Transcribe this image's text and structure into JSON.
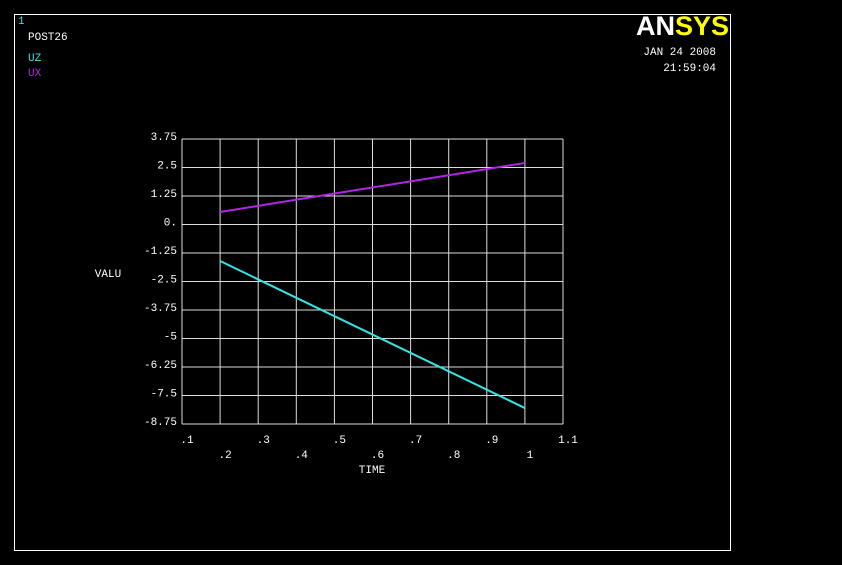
{
  "header": {
    "window_number": "1",
    "logo_parts": [
      "AN",
      "SYS"
    ],
    "date": "JAN 24 2008",
    "time": "21:59:04"
  },
  "chart_data": {
    "type": "line",
    "title": "POST26",
    "xlabel": "TIME",
    "ylabel": "VALU",
    "x": [
      0.2,
      1.0
    ],
    "series": [
      {
        "name": "UZ",
        "color": "#33e6e6",
        "values": [
          -1.6,
          -8.05
        ]
      },
      {
        "name": "UX",
        "color": "#b026e6",
        "values": [
          0.55,
          2.7
        ]
      }
    ],
    "xlim": [
      0.1,
      1.1
    ],
    "xticks": [
      {
        "value": 0.1,
        "label": ".1"
      },
      {
        "value": 0.2,
        "label": ".2"
      },
      {
        "value": 0.3,
        "label": ".3"
      },
      {
        "value": 0.4,
        "label": ".4"
      },
      {
        "value": 0.5,
        "label": ".5"
      },
      {
        "value": 0.6,
        "label": ".6"
      },
      {
        "value": 0.7,
        "label": ".7"
      },
      {
        "value": 0.8,
        "label": ".8"
      },
      {
        "value": 0.9,
        "label": ".9"
      },
      1,
      1.1
    ],
    "ylim": [
      -8.75,
      3.75
    ],
    "yticks": [
      3.75,
      2.5,
      1.25,
      {
        "value": 0,
        "label": "0."
      },
      -1.25,
      -2.5,
      -3.75,
      -5,
      -6.25,
      -7.5,
      -8.75
    ],
    "grid": true
  }
}
